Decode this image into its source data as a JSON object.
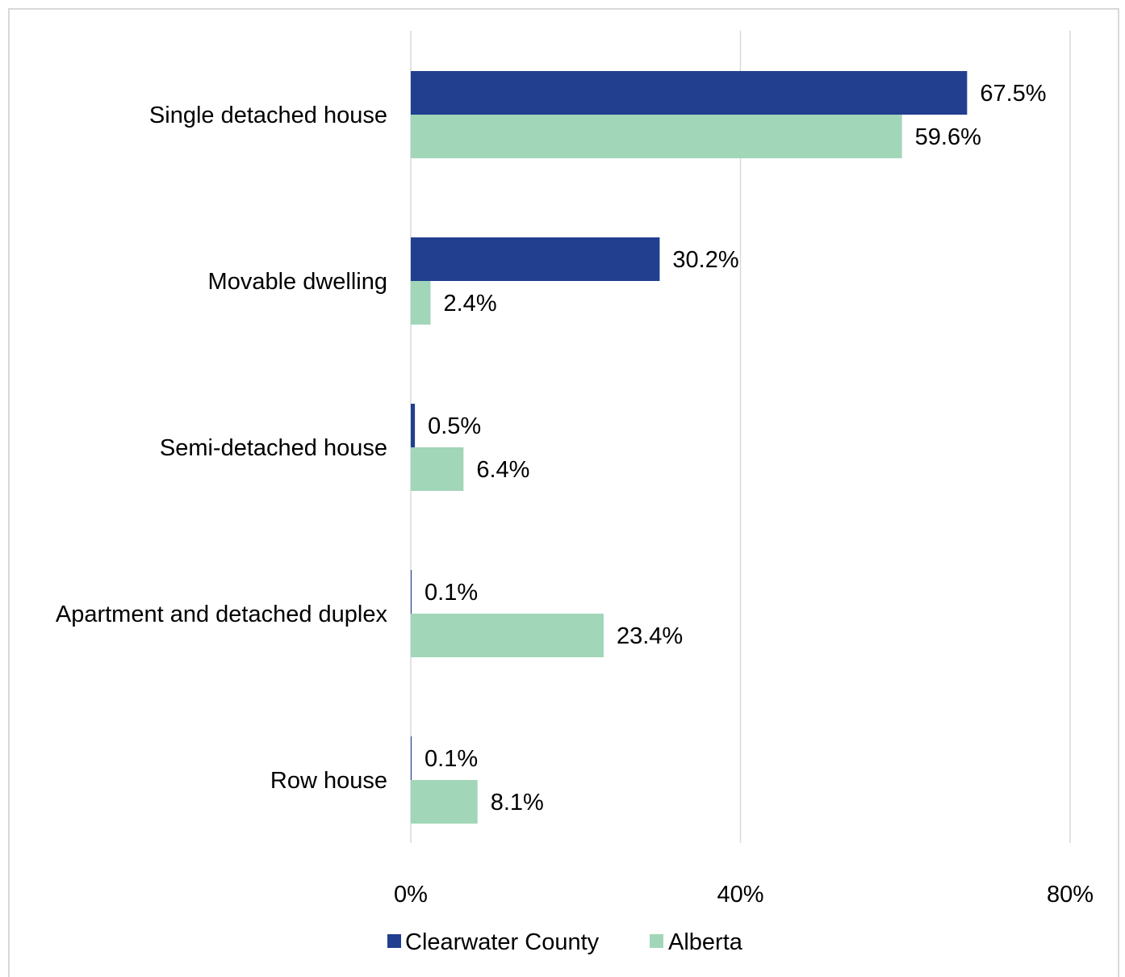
{
  "chart_data": {
    "type": "bar",
    "orientation": "horizontal",
    "categories": [
      "Single detached house",
      "Movable dwelling",
      "Semi-detached house",
      "Apartment and detached duplex",
      "Row house"
    ],
    "series": [
      {
        "name": "Clearwater County",
        "values": [
          67.5,
          30.2,
          0.5,
          0.1,
          0.1
        ],
        "labels": [
          "67.5%",
          "30.2%",
          "0.5%",
          "0.1%",
          "0.1%"
        ],
        "color": "#223f8f"
      },
      {
        "name": "Alberta",
        "values": [
          59.6,
          2.4,
          6.4,
          23.4,
          8.1
        ],
        "labels": [
          "59.6%",
          "2.4%",
          "6.4%",
          "23.4%",
          "8.1%"
        ],
        "color": "#a2d6b9"
      }
    ],
    "x_ticks": [
      0,
      40,
      80
    ],
    "x_tick_labels": [
      "0%",
      "40%",
      "80%"
    ],
    "xlim": [
      0,
      80
    ],
    "grid": "vertical",
    "legend_position": "bottom"
  }
}
